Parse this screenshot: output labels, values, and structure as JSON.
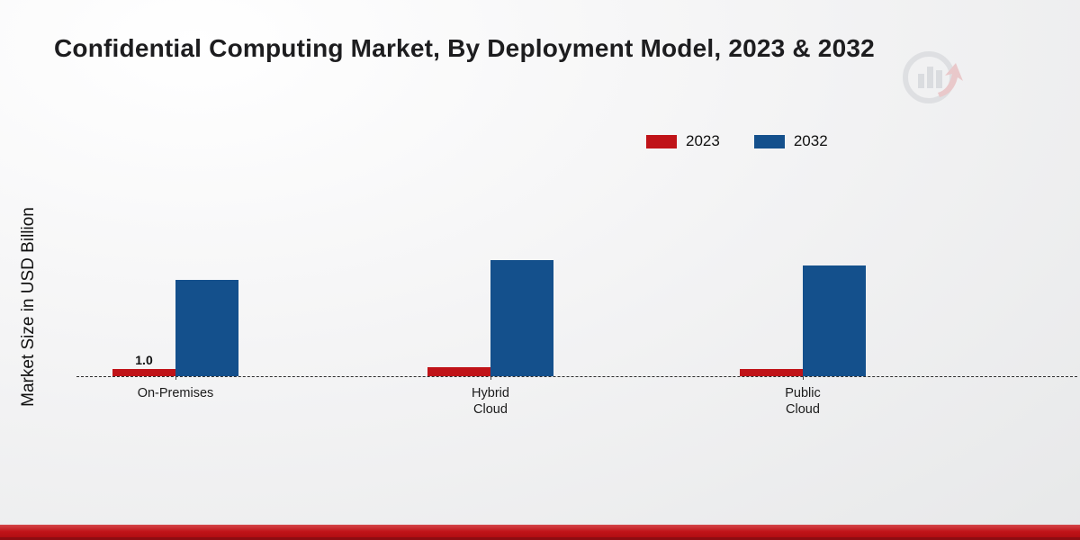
{
  "title": "Confidential Computing Market, By Deployment Model, 2023 & 2032",
  "y_axis_label": "Market Size in USD Billion",
  "legend": [
    {
      "label": "2023",
      "color": "#c01318"
    },
    {
      "label": "2032",
      "color": "#14508c"
    }
  ],
  "chart_data": {
    "type": "bar",
    "title": "Confidential Computing Market, By Deployment Model, 2023 & 2032",
    "categories": [
      "On-Premises",
      "Hybrid Cloud",
      "Public Cloud"
    ],
    "series": [
      {
        "name": "2023",
        "color": "#c01318",
        "values": [
          1.0,
          1.3,
          1.0
        ],
        "data_labels": [
          "1.0",
          "",
          ""
        ]
      },
      {
        "name": "2032",
        "color": "#14508c",
        "values": [
          13.4,
          16.1,
          15.4
        ],
        "data_labels": [
          "",
          "",
          ""
        ]
      }
    ],
    "xlabel": "",
    "ylabel": "Market Size in USD Billion",
    "ylim": [
      0,
      18
    ],
    "grid": false,
    "baseline_style": "dashed",
    "legend_position": "top-right"
  },
  "watermark": {
    "name": "market-research-bar-chart-logo"
  },
  "footer": {
    "band_color": "#c01318",
    "line_color": "#8c0d12"
  }
}
